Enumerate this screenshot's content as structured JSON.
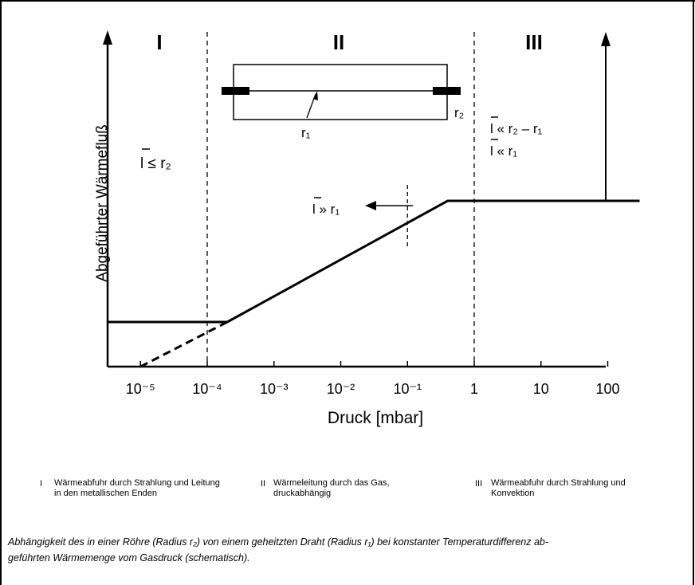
{
  "chart_data": {
    "type": "line",
    "xlabel": "Druck [mbar]",
    "ylabel": "Abgeführter Wärmefluß",
    "x_scale": "log",
    "x_ticks": [
      "10⁻⁵",
      "10⁻⁴",
      "10⁻³",
      "10⁻²",
      "10⁻¹",
      "1",
      "10",
      "100"
    ],
    "x_tick_values": [
      1e-05,
      0.0001,
      0.001,
      0.01,
      0.1,
      1,
      10,
      100
    ],
    "xlim": [
      2e-06,
      300
    ],
    "ylim": [
      0,
      1
    ],
    "series": [
      {
        "style": "solid",
        "x": [
          2e-06,
          0.0002,
          0.4,
          300
        ],
        "y": [
          0.18,
          0.18,
          0.68,
          0.68
        ]
      },
      {
        "style": "dashed",
        "x": [
          1e-05,
          0.0002
        ],
        "y": [
          0.0,
          0.18
        ]
      }
    ],
    "region_bounds": [
      0.0001,
      1
    ],
    "marker_x": 0.1,
    "regions": [
      {
        "label": "I",
        "condition": "l ≤ r₂"
      },
      {
        "label": "II",
        "condition": "l » r₁"
      },
      {
        "label": "III",
        "condition_lines": [
          "l « r₂ – r₁",
          "l « r₁"
        ]
      }
    ],
    "inset": {
      "r2_label": "r₂",
      "r1_label": "r₁"
    }
  },
  "legend": [
    {
      "num": "I",
      "lines": [
        "Wärmeabfuhr durch Strahlung und Leitung",
        "in den metallischen Enden"
      ]
    },
    {
      "num": "II",
      "lines": [
        "Wärmeleitung durch das Gas,",
        "druckabhängig"
      ]
    },
    {
      "num": "III",
      "lines": [
        "Wärmeabfuhr durch Strahlung und",
        "Konvektion"
      ]
    }
  ],
  "caption": {
    "line1": "Abhängigkeit des in einer Röhre (Radius r₂) von einem geheitzten Draht (Radius r₁) bei konstanter Temperaturdifferenz ab-",
    "line2": "geführten Wärmemenge vom Gasdruck (schematisch)."
  }
}
